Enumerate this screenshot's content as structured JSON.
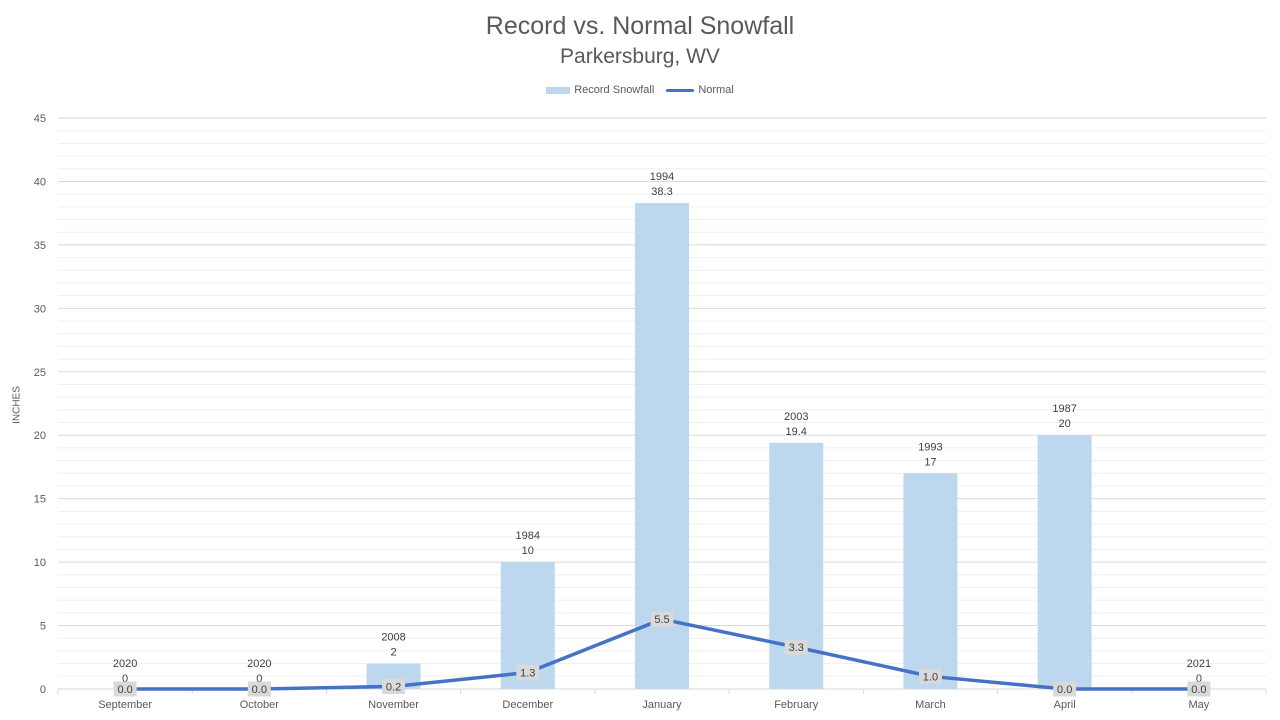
{
  "chart_data": {
    "type": "bar",
    "title": "Record vs. Normal Snowfall",
    "subtitle": "Parkersburg,  WV",
    "xlabel": "",
    "ylabel": "INCHES",
    "ylim": [
      0,
      45
    ],
    "yticks": [
      0,
      5,
      10,
      15,
      20,
      25,
      30,
      35,
      40,
      45
    ],
    "grid": true,
    "legend_position": "top",
    "categories": [
      "September",
      "October",
      "November",
      "December",
      "January",
      "February",
      "March",
      "April",
      "May"
    ],
    "series": [
      {
        "name": "Record Snowfall",
        "kind": "bar",
        "color": "#bdd7ee",
        "values": [
          0,
          0,
          2,
          10,
          38.3,
          19.4,
          17,
          20,
          0
        ],
        "years": [
          "2020",
          "2020",
          "2008",
          "1984",
          "1994",
          "2003",
          "1993",
          "1987",
          "2021"
        ],
        "value_labels": [
          "0",
          "0",
          "2",
          "10",
          "38.3",
          "19.4",
          "17",
          "20",
          "0"
        ]
      },
      {
        "name": "Normal",
        "kind": "line",
        "color": "#4472c4",
        "values": [
          0.0,
          0.0,
          0.2,
          1.3,
          5.5,
          3.3,
          1.0,
          0.0,
          0.0
        ],
        "value_labels": [
          "0.0",
          "0.0",
          "0.2",
          "1.3",
          "5.5",
          "3.3",
          "1.0",
          "0.0",
          "0.0"
        ]
      }
    ]
  }
}
